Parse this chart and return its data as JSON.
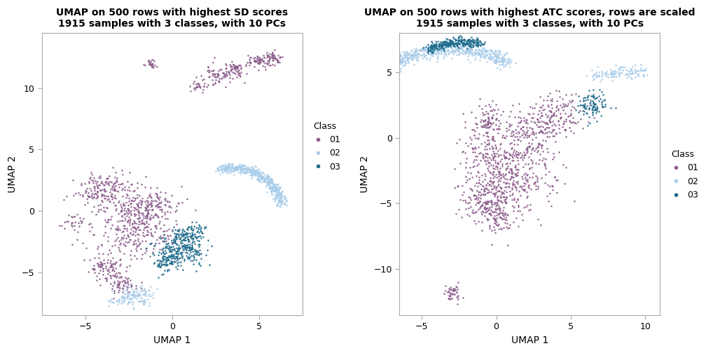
{
  "plot1": {
    "title_line1": "UMAP on 500 rows with highest SD scores",
    "title_line2": "1915 samples with 3 classes, with 10 PCs",
    "xlabel": "UMAP 1",
    "ylabel": "UMAP 2",
    "xlim": [
      -7.5,
      7.5
    ],
    "ylim": [
      -8.5,
      14.5
    ],
    "xticks": [
      -5,
      0,
      5
    ],
    "yticks": [
      -5,
      0,
      5,
      10
    ]
  },
  "plot2": {
    "title_line1": "UMAP on 500 rows with highest ATC scores, rows are scaled",
    "title_line2": "1915 samples with 3 classes, with 10 PCs",
    "xlabel": "UMAP 1",
    "ylabel": "UMAP 2",
    "xlim": [
      -6.5,
      11
    ],
    "ylim": [
      -13.5,
      8
    ],
    "xticks": [
      -5,
      0,
      5,
      10
    ],
    "yticks": [
      -10,
      -5,
      0,
      5
    ]
  },
  "colors": {
    "01": "#8B5C8B",
    "02": "#A8CCEA",
    "03": "#1E6B8C"
  },
  "point_size": 3,
  "alpha": 1.0,
  "background_color": "white",
  "legend_title": "Class",
  "spine_color": "#AAAAAA"
}
